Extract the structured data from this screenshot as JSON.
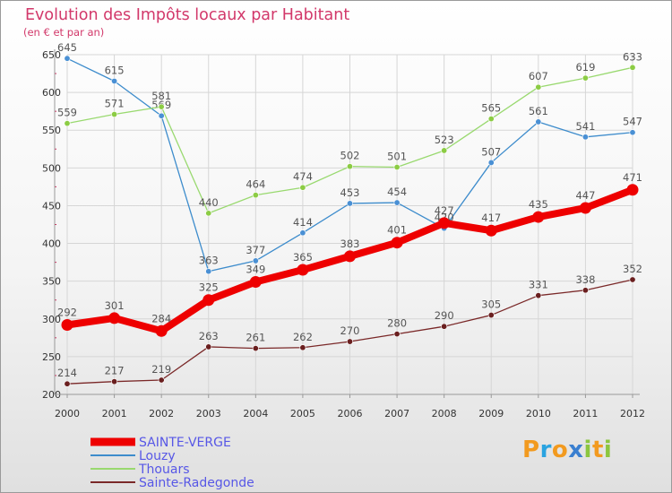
{
  "chart_data": {
    "type": "line",
    "title": "Evolution des Impôts locaux par Habitant",
    "subtitle": "(en € et par an)",
    "xlabel": "",
    "ylabel": "",
    "categories": [
      "2000",
      "2001",
      "2002",
      "2003",
      "2004",
      "2005",
      "2006",
      "2007",
      "2008",
      "2009",
      "2010",
      "2011",
      "2012"
    ],
    "ylim": [
      200,
      650
    ],
    "yticks": [
      200,
      250,
      300,
      350,
      400,
      450,
      500,
      550,
      600,
      650
    ],
    "grid": true,
    "legend_position": "bottom-left",
    "series": [
      {
        "name": "SAINTE-VERGE",
        "color": "#ee0000",
        "emphasis": true,
        "values": [
          292,
          301,
          284,
          325,
          349,
          365,
          383,
          401,
          427,
          417,
          435,
          447,
          471
        ]
      },
      {
        "name": "Louzy",
        "color": "#3d8ccc",
        "marker": "#4a90d4",
        "values": [
          645,
          615,
          569,
          363,
          377,
          414,
          453,
          454,
          420,
          507,
          561,
          541,
          547
        ]
      },
      {
        "name": "Thouars",
        "color": "#99d96f",
        "marker": "#8ccc44",
        "values": [
          559,
          571,
          581,
          440,
          464,
          474,
          502,
          501,
          523,
          565,
          607,
          619,
          633
        ]
      },
      {
        "name": "Sainte-Radegonde",
        "color": "#7a2828",
        "marker": "#6a1f1f",
        "values": [
          214,
          217,
          219,
          263,
          261,
          262,
          270,
          280,
          290,
          305,
          331,
          338,
          352
        ]
      }
    ]
  },
  "logo": {
    "letters": [
      "P",
      "r",
      "o",
      "x",
      "i",
      "t",
      "i"
    ],
    "colors": [
      "#f29a1f",
      "#2aa3e0",
      "#f29a1f",
      "#3a7fd0",
      "#8cc63f",
      "#f29a1f",
      "#8cc63f"
    ]
  }
}
